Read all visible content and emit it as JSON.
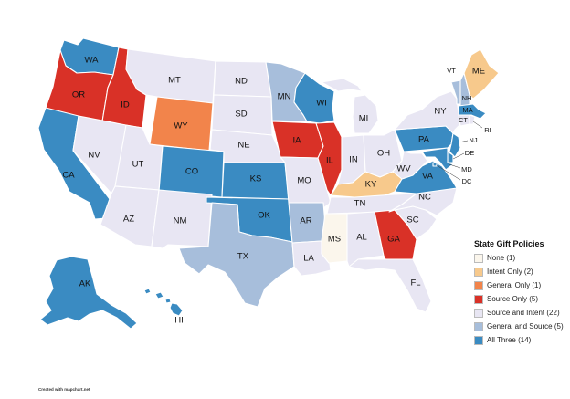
{
  "legend": {
    "title": "State Gift Policies",
    "items": [
      {
        "label": "None (1)",
        "color": "#fbf6ec"
      },
      {
        "label": "Intent Only (2)",
        "color": "#f7c98c"
      },
      {
        "label": "General Only (1)",
        "color": "#f2844b"
      },
      {
        "label": "Source Only (5)",
        "color": "#d93127"
      },
      {
        "label": "Source and Intent (22)",
        "color": "#e8e6f3"
      },
      {
        "label": "General and Source (5)",
        "color": "#a7bedb"
      },
      {
        "label": "All Three (14)",
        "color": "#3a8bc2"
      }
    ]
  },
  "credit": "Created with mapchart.net",
  "states": [
    {
      "abbr": "WA",
      "category": "All Three"
    },
    {
      "abbr": "OR",
      "category": "Source Only"
    },
    {
      "abbr": "CA",
      "category": "All Three"
    },
    {
      "abbr": "ID",
      "category": "Source Only"
    },
    {
      "abbr": "NV",
      "category": "Source and Intent"
    },
    {
      "abbr": "MT",
      "category": "Source and Intent"
    },
    {
      "abbr": "WY",
      "category": "General Only"
    },
    {
      "abbr": "UT",
      "category": "Source and Intent"
    },
    {
      "abbr": "CO",
      "category": "All Three"
    },
    {
      "abbr": "AZ",
      "category": "Source and Intent"
    },
    {
      "abbr": "NM",
      "category": "Source and Intent"
    },
    {
      "abbr": "ND",
      "category": "Source and Intent"
    },
    {
      "abbr": "SD",
      "category": "Source and Intent"
    },
    {
      "abbr": "NE",
      "category": "Source and Intent"
    },
    {
      "abbr": "KS",
      "category": "All Three"
    },
    {
      "abbr": "OK",
      "category": "All Three"
    },
    {
      "abbr": "TX",
      "category": "General and Source"
    },
    {
      "abbr": "MN",
      "category": "General and Source"
    },
    {
      "abbr": "IA",
      "category": "Source Only"
    },
    {
      "abbr": "MO",
      "category": "Source and Intent"
    },
    {
      "abbr": "AR",
      "category": "General and Source"
    },
    {
      "abbr": "LA",
      "category": "Source and Intent"
    },
    {
      "abbr": "WI",
      "category": "All Three"
    },
    {
      "abbr": "IL",
      "category": "Source Only"
    },
    {
      "abbr": "MI",
      "category": "Source and Intent"
    },
    {
      "abbr": "IN",
      "category": "Source and Intent"
    },
    {
      "abbr": "OH",
      "category": "Source and Intent"
    },
    {
      "abbr": "KY",
      "category": "Intent Only"
    },
    {
      "abbr": "TN",
      "category": "Source and Intent"
    },
    {
      "abbr": "MS",
      "category": "None"
    },
    {
      "abbr": "AL",
      "category": "Source and Intent"
    },
    {
      "abbr": "GA",
      "category": "Source Only"
    },
    {
      "abbr": "FL",
      "category": "Source and Intent"
    },
    {
      "abbr": "SC",
      "category": "Source and Intent"
    },
    {
      "abbr": "NC",
      "category": "Source and Intent"
    },
    {
      "abbr": "VA",
      "category": "All Three"
    },
    {
      "abbr": "WV",
      "category": "Source and Intent"
    },
    {
      "abbr": "PA",
      "category": "All Three"
    },
    {
      "abbr": "NY",
      "category": "Source and Intent"
    },
    {
      "abbr": "VT",
      "category": "General and Source"
    },
    {
      "abbr": "NH",
      "category": "General and Source"
    },
    {
      "abbr": "ME",
      "category": "Intent Only"
    },
    {
      "abbr": "MA",
      "category": "All Three"
    },
    {
      "abbr": "RI",
      "category": "Source and Intent"
    },
    {
      "abbr": "CT",
      "category": "Source and Intent"
    },
    {
      "abbr": "NJ",
      "category": "All Three"
    },
    {
      "abbr": "DE",
      "category": "All Three"
    },
    {
      "abbr": "MD",
      "category": "All Three"
    },
    {
      "abbr": "DC",
      "category": "All Three"
    },
    {
      "abbr": "AK",
      "category": "All Three"
    },
    {
      "abbr": "HI",
      "category": "All Three"
    }
  ]
}
